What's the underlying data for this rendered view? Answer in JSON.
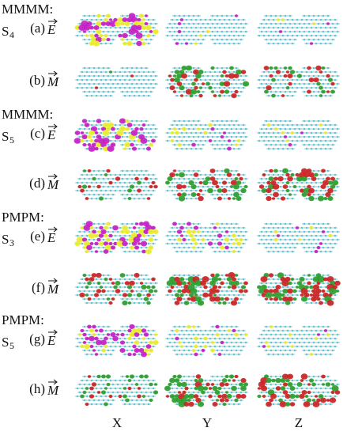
{
  "rows": [
    {
      "group": "MMMM:",
      "state": {
        "letter": "S",
        "index": "4"
      },
      "label": "(a)",
      "field": "E"
    },
    {
      "label": "(b)",
      "field": "M"
    },
    {
      "group": "MMMM:",
      "state": {
        "letter": "S",
        "index": "5"
      },
      "label": "(c)",
      "field": "E"
    },
    {
      "label": "(d)",
      "field": "M"
    },
    {
      "group": "PMPM:",
      "state": {
        "letter": "S",
        "index": "3"
      },
      "label": "(e)",
      "field": "E"
    },
    {
      "label": "(f)",
      "field": "M"
    },
    {
      "group": "PMPM:",
      "state": {
        "letter": "S",
        "index": "5"
      },
      "label": "(g)",
      "field": "E"
    },
    {
      "label": "(h)",
      "field": "M"
    }
  ],
  "columns": [
    "X",
    "Y",
    "Z"
  ]
}
